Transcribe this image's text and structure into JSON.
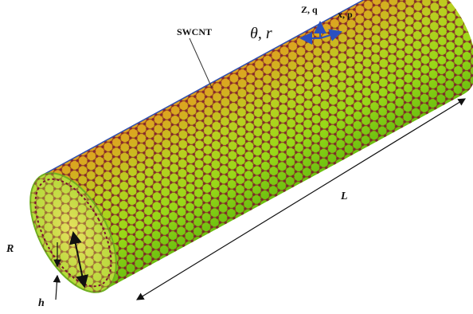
{
  "labels": {
    "swcnt": "SWCNT",
    "theta_r": "θ, r",
    "z_q": "Z, q",
    "x_p": "x, p",
    "length": "L",
    "radius": "R",
    "thickness": "h"
  }
}
